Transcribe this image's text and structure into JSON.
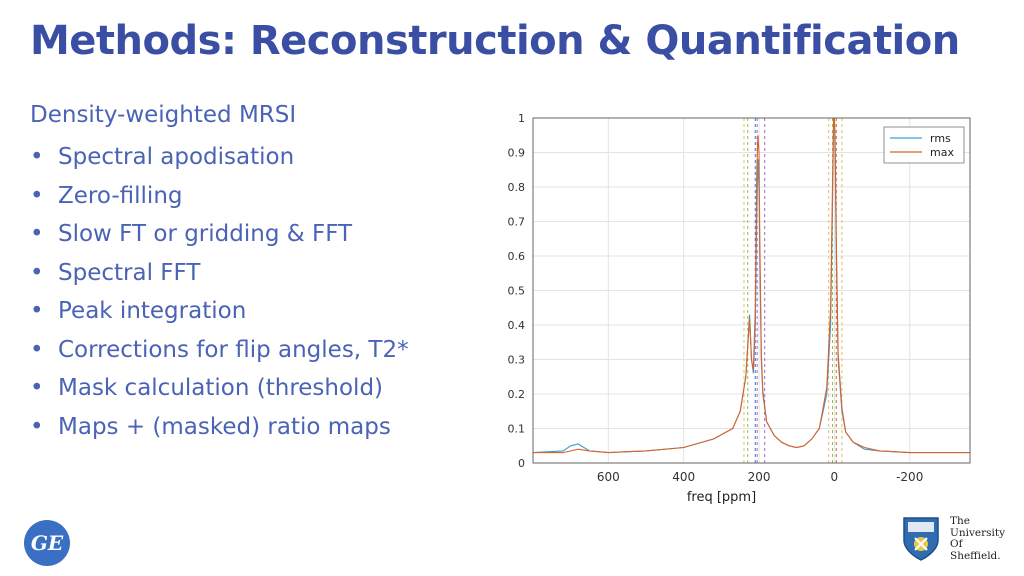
{
  "title": "Methods: Reconstruction & Quantification",
  "subtitle": "Density-weighted MRSI",
  "bullets": [
    "Spectral apodisation",
    "Zero-filling",
    "Slow FT or gridding & FFT",
    "Spectral FFT",
    "Peak integration",
    "Corrections for flip angles, T2*",
    "Mask calculation (threshold)",
    "Maps + (masked) ratio maps"
  ],
  "logos": {
    "ge": "GE",
    "university": [
      "The",
      "University",
      "Of",
      "Sheffield."
    ]
  },
  "colors": {
    "text_blue": "#4a63b5",
    "title_blue": "#3a4fa3",
    "rms": "#3b9fd0",
    "max": "#d9622b"
  },
  "chart_data": {
    "type": "line",
    "xlabel": "freq [ppm]",
    "ylabel": "",
    "xlim": [
      800,
      -360
    ],
    "ylim": [
      0,
      1
    ],
    "xticks": [
      "600",
      "400",
      "200",
      "0",
      "-200"
    ],
    "yticks": [
      "0",
      "0.1",
      "0.2",
      "0.3",
      "0.4",
      "0.5",
      "0.6",
      "0.7",
      "0.8",
      "0.9",
      "1"
    ],
    "grid": true,
    "legend": "top-right",
    "series": [
      {
        "name": "rms",
        "color": "#3b9fd0",
        "x": [
          800,
          720,
          700,
          680,
          650,
          600,
          500,
          400,
          320,
          270,
          250,
          235,
          228,
          225,
          220,
          215,
          210,
          206,
          203,
          200,
          198,
          194,
          190,
          180,
          160,
          140,
          120,
          100,
          80,
          60,
          40,
          30,
          20,
          10,
          5,
          2,
          0,
          -2,
          -5,
          -10,
          -20,
          -30,
          -50,
          -80,
          -120,
          -200,
          -280,
          -360
        ],
        "y": [
          0.03,
          0.035,
          0.05,
          0.055,
          0.035,
          0.03,
          0.035,
          0.045,
          0.07,
          0.1,
          0.15,
          0.25,
          0.38,
          0.43,
          0.3,
          0.26,
          0.4,
          0.72,
          0.88,
          0.8,
          0.6,
          0.3,
          0.2,
          0.12,
          0.08,
          0.06,
          0.05,
          0.045,
          0.05,
          0.07,
          0.1,
          0.15,
          0.2,
          0.4,
          0.75,
          1.0,
          1.0,
          0.9,
          0.6,
          0.3,
          0.15,
          0.09,
          0.06,
          0.04,
          0.035,
          0.03,
          0.03,
          0.03
        ]
      },
      {
        "name": "max",
        "color": "#d9622b",
        "x": [
          800,
          720,
          700,
          680,
          650,
          600,
          500,
          400,
          320,
          270,
          250,
          235,
          228,
          225,
          220,
          215,
          210,
          206,
          203,
          200,
          198,
          194,
          190,
          180,
          160,
          140,
          120,
          100,
          80,
          60,
          40,
          30,
          20,
          10,
          5,
          2,
          0,
          -2,
          -5,
          -10,
          -20,
          -30,
          -50,
          -80,
          -120,
          -200,
          -280,
          -360
        ],
        "y": [
          0.03,
          0.03,
          0.035,
          0.04,
          0.035,
          0.03,
          0.035,
          0.045,
          0.07,
          0.1,
          0.15,
          0.25,
          0.37,
          0.42,
          0.3,
          0.27,
          0.45,
          0.85,
          0.95,
          0.9,
          0.65,
          0.32,
          0.21,
          0.12,
          0.08,
          0.06,
          0.05,
          0.045,
          0.05,
          0.07,
          0.1,
          0.16,
          0.22,
          0.45,
          0.8,
          1.0,
          1.0,
          0.95,
          0.65,
          0.32,
          0.16,
          0.09,
          0.06,
          0.045,
          0.035,
          0.03,
          0.03,
          0.03
        ]
      }
    ],
    "vlines": [
      {
        "x": 240,
        "color": "#e0c060"
      },
      {
        "x": 230,
        "color": "#8bc34a"
      },
      {
        "x": 210,
        "color": "#4a6fd0"
      },
      {
        "x": 205,
        "color": "#9c6ad0"
      },
      {
        "x": 185,
        "color": "#9c6ad0"
      },
      {
        "x": 15,
        "color": "#e0c060"
      },
      {
        "x": 5,
        "color": "#8bc34a"
      },
      {
        "x": -5,
        "color": "#d9622b"
      },
      {
        "x": -20,
        "color": "#e0c060"
      }
    ]
  }
}
